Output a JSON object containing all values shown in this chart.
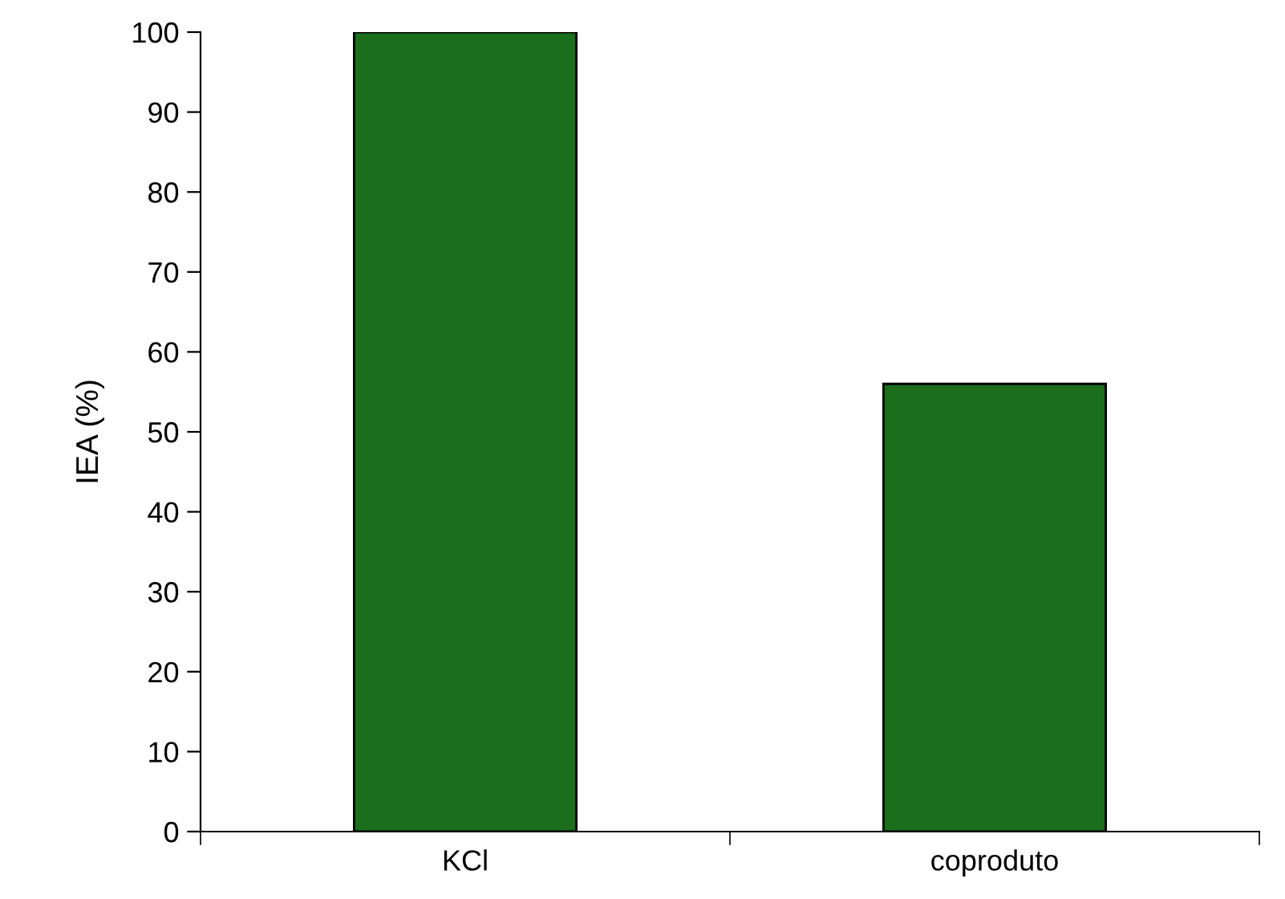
{
  "chart_data": {
    "type": "bar",
    "ylabel": "IEA (%)",
    "categories": [
      "KCl",
      "coproduto"
    ],
    "values": [
      100,
      56
    ],
    "color": "#1b6e1b",
    "ylim": [
      0,
      100
    ],
    "yticks": [
      0,
      10,
      20,
      30,
      40,
      50,
      60,
      70,
      80,
      90,
      100
    ],
    "grid": false
  }
}
